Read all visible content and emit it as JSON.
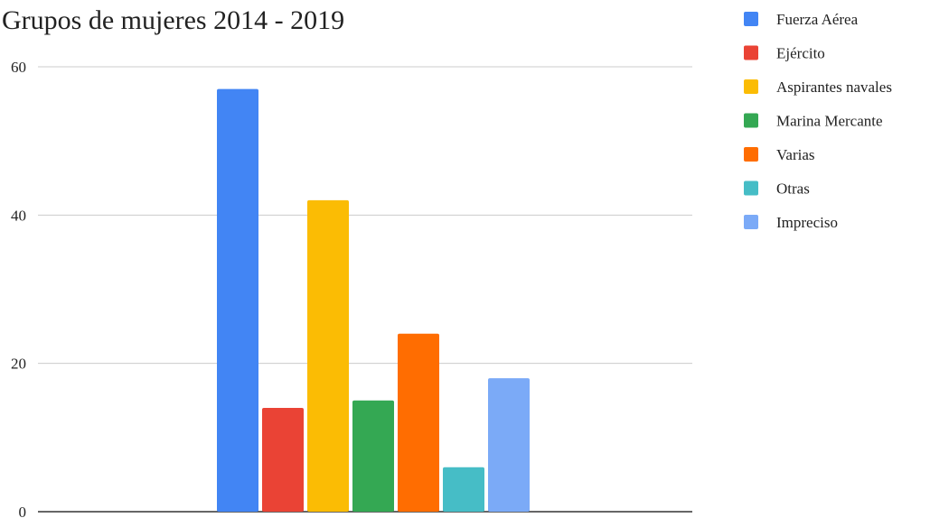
{
  "chart_data": {
    "type": "bar",
    "title": "Grupos de mujeres 2014 - 2019",
    "xlabel": "",
    "ylabel": "",
    "ylim": [
      0,
      60
    ],
    "yticks": [
      "0",
      "20",
      "40",
      "60"
    ],
    "grid": true,
    "legend_position": "right",
    "categories": [
      ""
    ],
    "series": [
      {
        "name": "Fuerza Aérea",
        "values": [
          57
        ],
        "color": "#4285f4"
      },
      {
        "name": "Ejército",
        "values": [
          14
        ],
        "color": "#ea4335"
      },
      {
        "name": "Aspirantes navales",
        "values": [
          42
        ],
        "color": "#fbbc04"
      },
      {
        "name": "Marina Mercante",
        "values": [
          15
        ],
        "color": "#34a853"
      },
      {
        "name": "Varias",
        "values": [
          24
        ],
        "color": "#ff6d01"
      },
      {
        "name": "Otras",
        "values": [
          6
        ],
        "color": "#46bdc6"
      },
      {
        "name": "Impreciso",
        "values": [
          18
        ],
        "color": "#7baaf7"
      }
    ]
  }
}
